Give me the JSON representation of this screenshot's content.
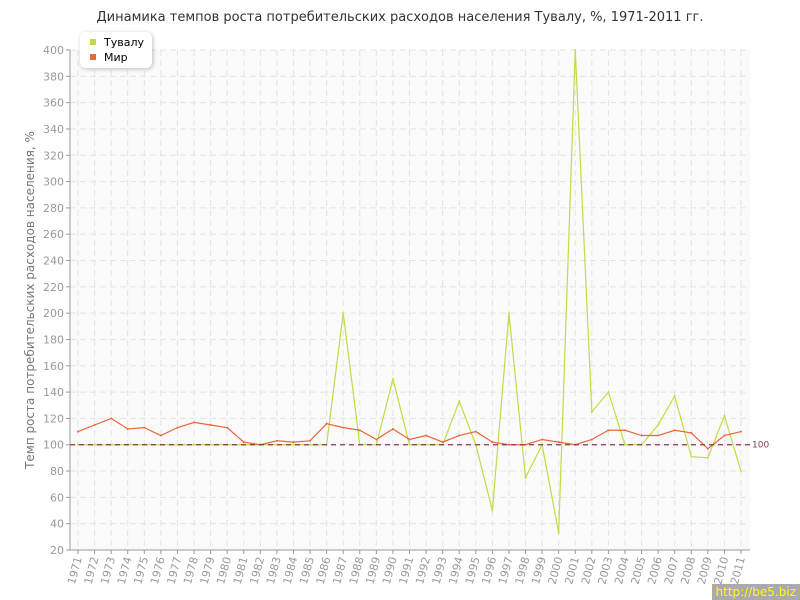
{
  "title": "Динамика темпов роста потребительских расходов населения Тувалу, %, 1971-2011 гг.",
  "watermark": "http://be5.biz",
  "chart_data": {
    "type": "line",
    "title": "Динамика темпов роста потребительских расходов населения Тувалу, %, 1971-2011 гг.",
    "ylabel": "Темп роста потребительских расходов населения, %",
    "xlabel": "",
    "ylim": [
      20,
      400
    ],
    "yticks": [
      20,
      40,
      60,
      80,
      100,
      120,
      140,
      160,
      180,
      200,
      220,
      240,
      260,
      280,
      300,
      320,
      340,
      360,
      380,
      400
    ],
    "grid": true,
    "legend": "top-left",
    "reference_line": {
      "value": 100,
      "label": "100",
      "color": "#8b3a4a"
    },
    "x": [
      "1971",
      "1972",
      "1973",
      "1974",
      "1975",
      "1976",
      "1977",
      "1978",
      "1979",
      "1980",
      "1981",
      "1982",
      "1983",
      "1984",
      "1985",
      "1986",
      "1987",
      "1988",
      "1989",
      "1990",
      "1991",
      "1992",
      "1993",
      "1994",
      "1995",
      "1996",
      "1997",
      "1998",
      "1999",
      "2000",
      "2001",
      "2002",
      "2003",
      "2004",
      "2005",
      "2006",
      "2007",
      "2008",
      "2009",
      "2010",
      "2011"
    ],
    "series": [
      {
        "name": "Тувалу",
        "color": "#bfdd44",
        "values": [
          100,
          100,
          100,
          100,
          100,
          100,
          100,
          100,
          100,
          100,
          100,
          100,
          100,
          100,
          100,
          100,
          200,
          100,
          100,
          150,
          100,
          100,
          100,
          133,
          100,
          50,
          200,
          75,
          100,
          33,
          400,
          125,
          140,
          100,
          100,
          115,
          137,
          91,
          90,
          122,
          80
        ]
      },
      {
        "name": "Мир",
        "color": "#e8673a",
        "values": [
          110,
          115,
          120,
          112,
          113,
          107,
          113,
          117,
          115,
          113,
          102,
          100,
          103,
          102,
          103,
          116,
          113,
          111,
          104,
          112,
          104,
          107,
          102,
          107,
          110,
          102,
          100,
          100,
          104,
          102,
          100,
          104,
          111,
          111,
          107,
          107,
          111,
          109,
          97,
          107,
          110
        ]
      }
    ]
  }
}
